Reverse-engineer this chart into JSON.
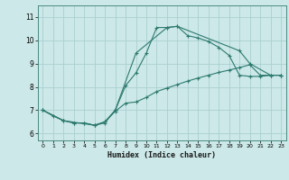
{
  "xlabel": "Humidex (Indice chaleur)",
  "background_color": "#cce8e8",
  "grid_color": "#aacfcf",
  "line_color": "#2d7a6e",
  "xlim": [
    -0.5,
    23.5
  ],
  "ylim": [
    5.7,
    11.5
  ],
  "yticks": [
    6,
    7,
    8,
    9,
    10,
    11
  ],
  "xticks": [
    0,
    1,
    2,
    3,
    4,
    5,
    6,
    7,
    8,
    9,
    10,
    11,
    12,
    13,
    14,
    15,
    16,
    17,
    18,
    19,
    20,
    21,
    22,
    23
  ],
  "line1_x": [
    0,
    1,
    2,
    3,
    4,
    5,
    6,
    7,
    8,
    9,
    10,
    11,
    12,
    13,
    14,
    15,
    16,
    17,
    18,
    19,
    20,
    21,
    22,
    23
  ],
  "line1_y": [
    7.0,
    6.75,
    6.55,
    6.45,
    6.45,
    6.35,
    6.45,
    7.0,
    8.05,
    8.6,
    9.45,
    10.55,
    10.55,
    10.6,
    10.2,
    10.1,
    9.95,
    9.7,
    9.35,
    8.5,
    8.45,
    8.45,
    8.5,
    8.5
  ],
  "line2_x": [
    0,
    2,
    3,
    4,
    5,
    6,
    7,
    8,
    9,
    10,
    11,
    12,
    13,
    14,
    15,
    16,
    17,
    18,
    19,
    20,
    21,
    22,
    23
  ],
  "line2_y": [
    7.0,
    6.55,
    6.45,
    6.45,
    6.35,
    6.5,
    6.95,
    7.3,
    7.35,
    7.55,
    7.8,
    7.95,
    8.1,
    8.25,
    8.38,
    8.5,
    8.62,
    8.72,
    8.83,
    8.95,
    8.5,
    8.5,
    8.5
  ],
  "line3_x": [
    0,
    2,
    5,
    6,
    7,
    9,
    12,
    13,
    19,
    20,
    22,
    23
  ],
  "line3_y": [
    7.0,
    6.55,
    6.35,
    6.5,
    7.0,
    9.45,
    10.55,
    10.6,
    9.55,
    9.0,
    8.5,
    8.5
  ]
}
